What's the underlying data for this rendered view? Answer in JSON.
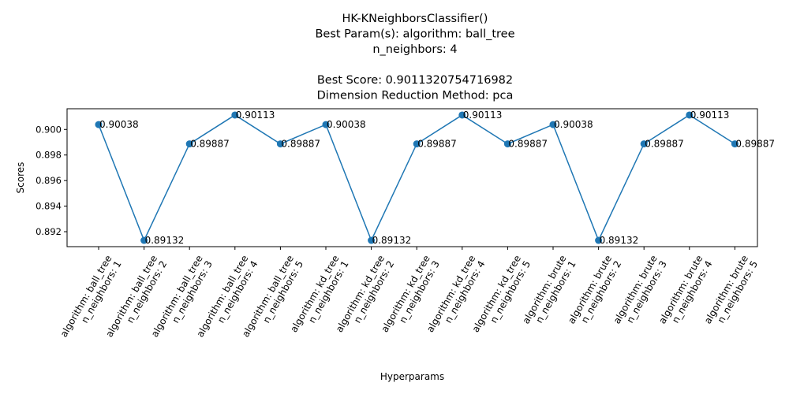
{
  "chart_data": {
    "type": "line",
    "title_lines": [
      "HK-KNeighborsClassifier()",
      "Best Param(s): algorithm: ball_tree",
      "n_neighbors: 4",
      "",
      "Best Score: 0.9011320754716982",
      "Dimension Reduction Method: pca"
    ],
    "xlabel": "Hyperparams",
    "ylabel": "Scores",
    "categories": [
      [
        "algorithm: ball_tree",
        "n_neighbors: 1"
      ],
      [
        "algorithm: ball_tree",
        "n_neighbors: 2"
      ],
      [
        "algorithm: ball_tree",
        "n_neighbors: 3"
      ],
      [
        "algorithm: ball_tree",
        "n_neighbors: 4"
      ],
      [
        "algorithm: ball_tree",
        "n_neighbors: 5"
      ],
      [
        "algorithm: kd_tree",
        "n_neighbors: 1"
      ],
      [
        "algorithm: kd_tree",
        "n_neighbors: 2"
      ],
      [
        "algorithm: kd_tree",
        "n_neighbors: 3"
      ],
      [
        "algorithm: kd_tree",
        "n_neighbors: 4"
      ],
      [
        "algorithm: kd_tree",
        "n_neighbors: 5"
      ],
      [
        "algorithm: brute",
        "n_neighbors: 1"
      ],
      [
        "algorithm: brute",
        "n_neighbors: 2"
      ],
      [
        "algorithm: brute",
        "n_neighbors: 3"
      ],
      [
        "algorithm: brute",
        "n_neighbors: 4"
      ],
      [
        "algorithm: brute",
        "n_neighbors: 5"
      ]
    ],
    "values": [
      0.90038,
      0.89132,
      0.89887,
      0.90113,
      0.89887,
      0.90038,
      0.89132,
      0.89887,
      0.90113,
      0.89887,
      0.90038,
      0.89132,
      0.89887,
      0.90113,
      0.89887
    ],
    "data_labels": [
      "0.90038",
      "0.89132",
      "0.89887",
      "0.90113",
      "0.89887",
      "0.90038",
      "0.89132",
      "0.89887",
      "0.90113",
      "0.89887",
      "0.90038",
      "0.89132",
      "0.89887",
      "0.90113",
      "0.89887"
    ],
    "yticks": [
      0.892,
      0.894,
      0.896,
      0.898,
      0.9
    ],
    "ytick_labels": [
      "0.892",
      "0.894",
      "0.896",
      "0.898",
      "0.900"
    ],
    "ylim": [
      0.89083,
      0.90162
    ],
    "grid": false,
    "line_color": "#1f77b4"
  }
}
